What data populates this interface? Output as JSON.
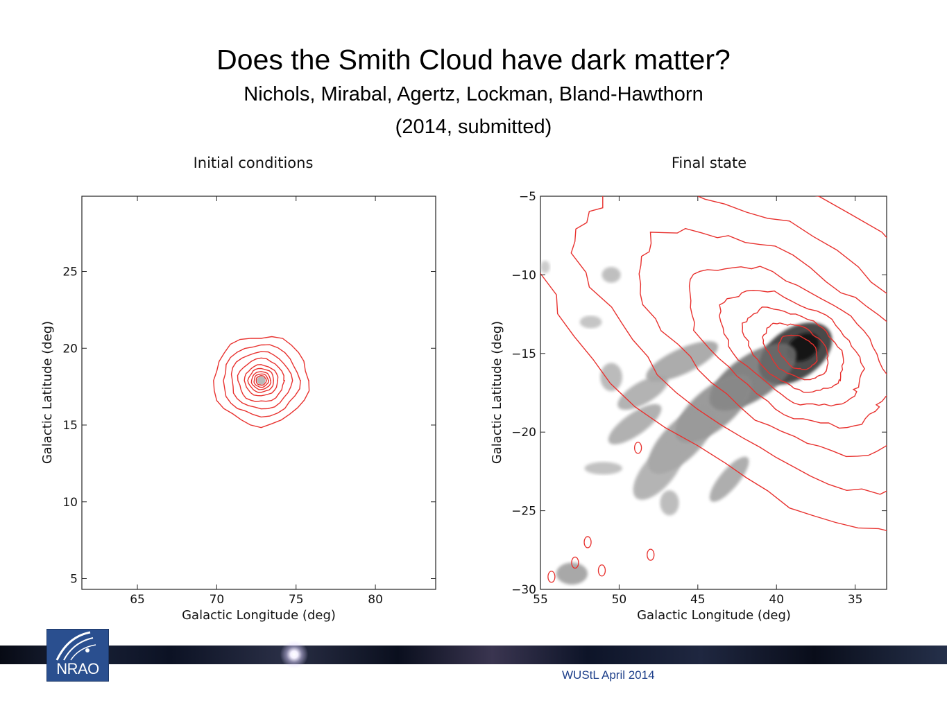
{
  "slide": {
    "title": "Does the Smith Cloud have dark matter?",
    "authors": "Nichols, Mirabal,  Agertz, Lockman, Bland-Hawthorn",
    "citation": "(2014, submitted)",
    "footer_text": "WUStL April 2014",
    "logo_text": "NRAO"
  },
  "colors": {
    "contour": "#e8312e",
    "gas_dark": "#1a1a1a",
    "gas_light": "#c8c8c8",
    "logo_blue": "#2a4f8f",
    "footer_text": "#1d3f8a"
  },
  "chart_data": [
    {
      "type": "contour",
      "title": "Initial conditions",
      "xlabel": "Galactic Longitude (deg)",
      "ylabel": "Galactic Latitude (deg)",
      "xlim": [
        61.5,
        83.8
      ],
      "ylim": [
        4.3,
        29.9
      ],
      "xticks": [
        65,
        70,
        75,
        80
      ],
      "yticks": [
        5,
        10,
        15,
        20,
        25
      ],
      "contour_center": {
        "l": 72.8,
        "b": 17.9
      },
      "contour_radii_deg": [
        3.0,
        2.4,
        1.9,
        1.45,
        1.05,
        0.8,
        0.6,
        0.45,
        0.32
      ],
      "grayscale_gas": false
    },
    {
      "type": "contour",
      "title": "Final state",
      "xlabel": "Galactic Longitude (deg)",
      "ylabel": "Galactic Latitude (deg)",
      "xlim": [
        55.0,
        33.0
      ],
      "ylim": [
        -30.0,
        -5.0
      ],
      "xticks": [
        55,
        50,
        45,
        40,
        35
      ],
      "yticks": [
        -5,
        -10,
        -15,
        -20,
        -25,
        -30
      ],
      "peak": {
        "l": 38.5,
        "b": -15.0
      },
      "elongation_axis_angle_deg": 34,
      "grayscale_gas": true
    }
  ]
}
